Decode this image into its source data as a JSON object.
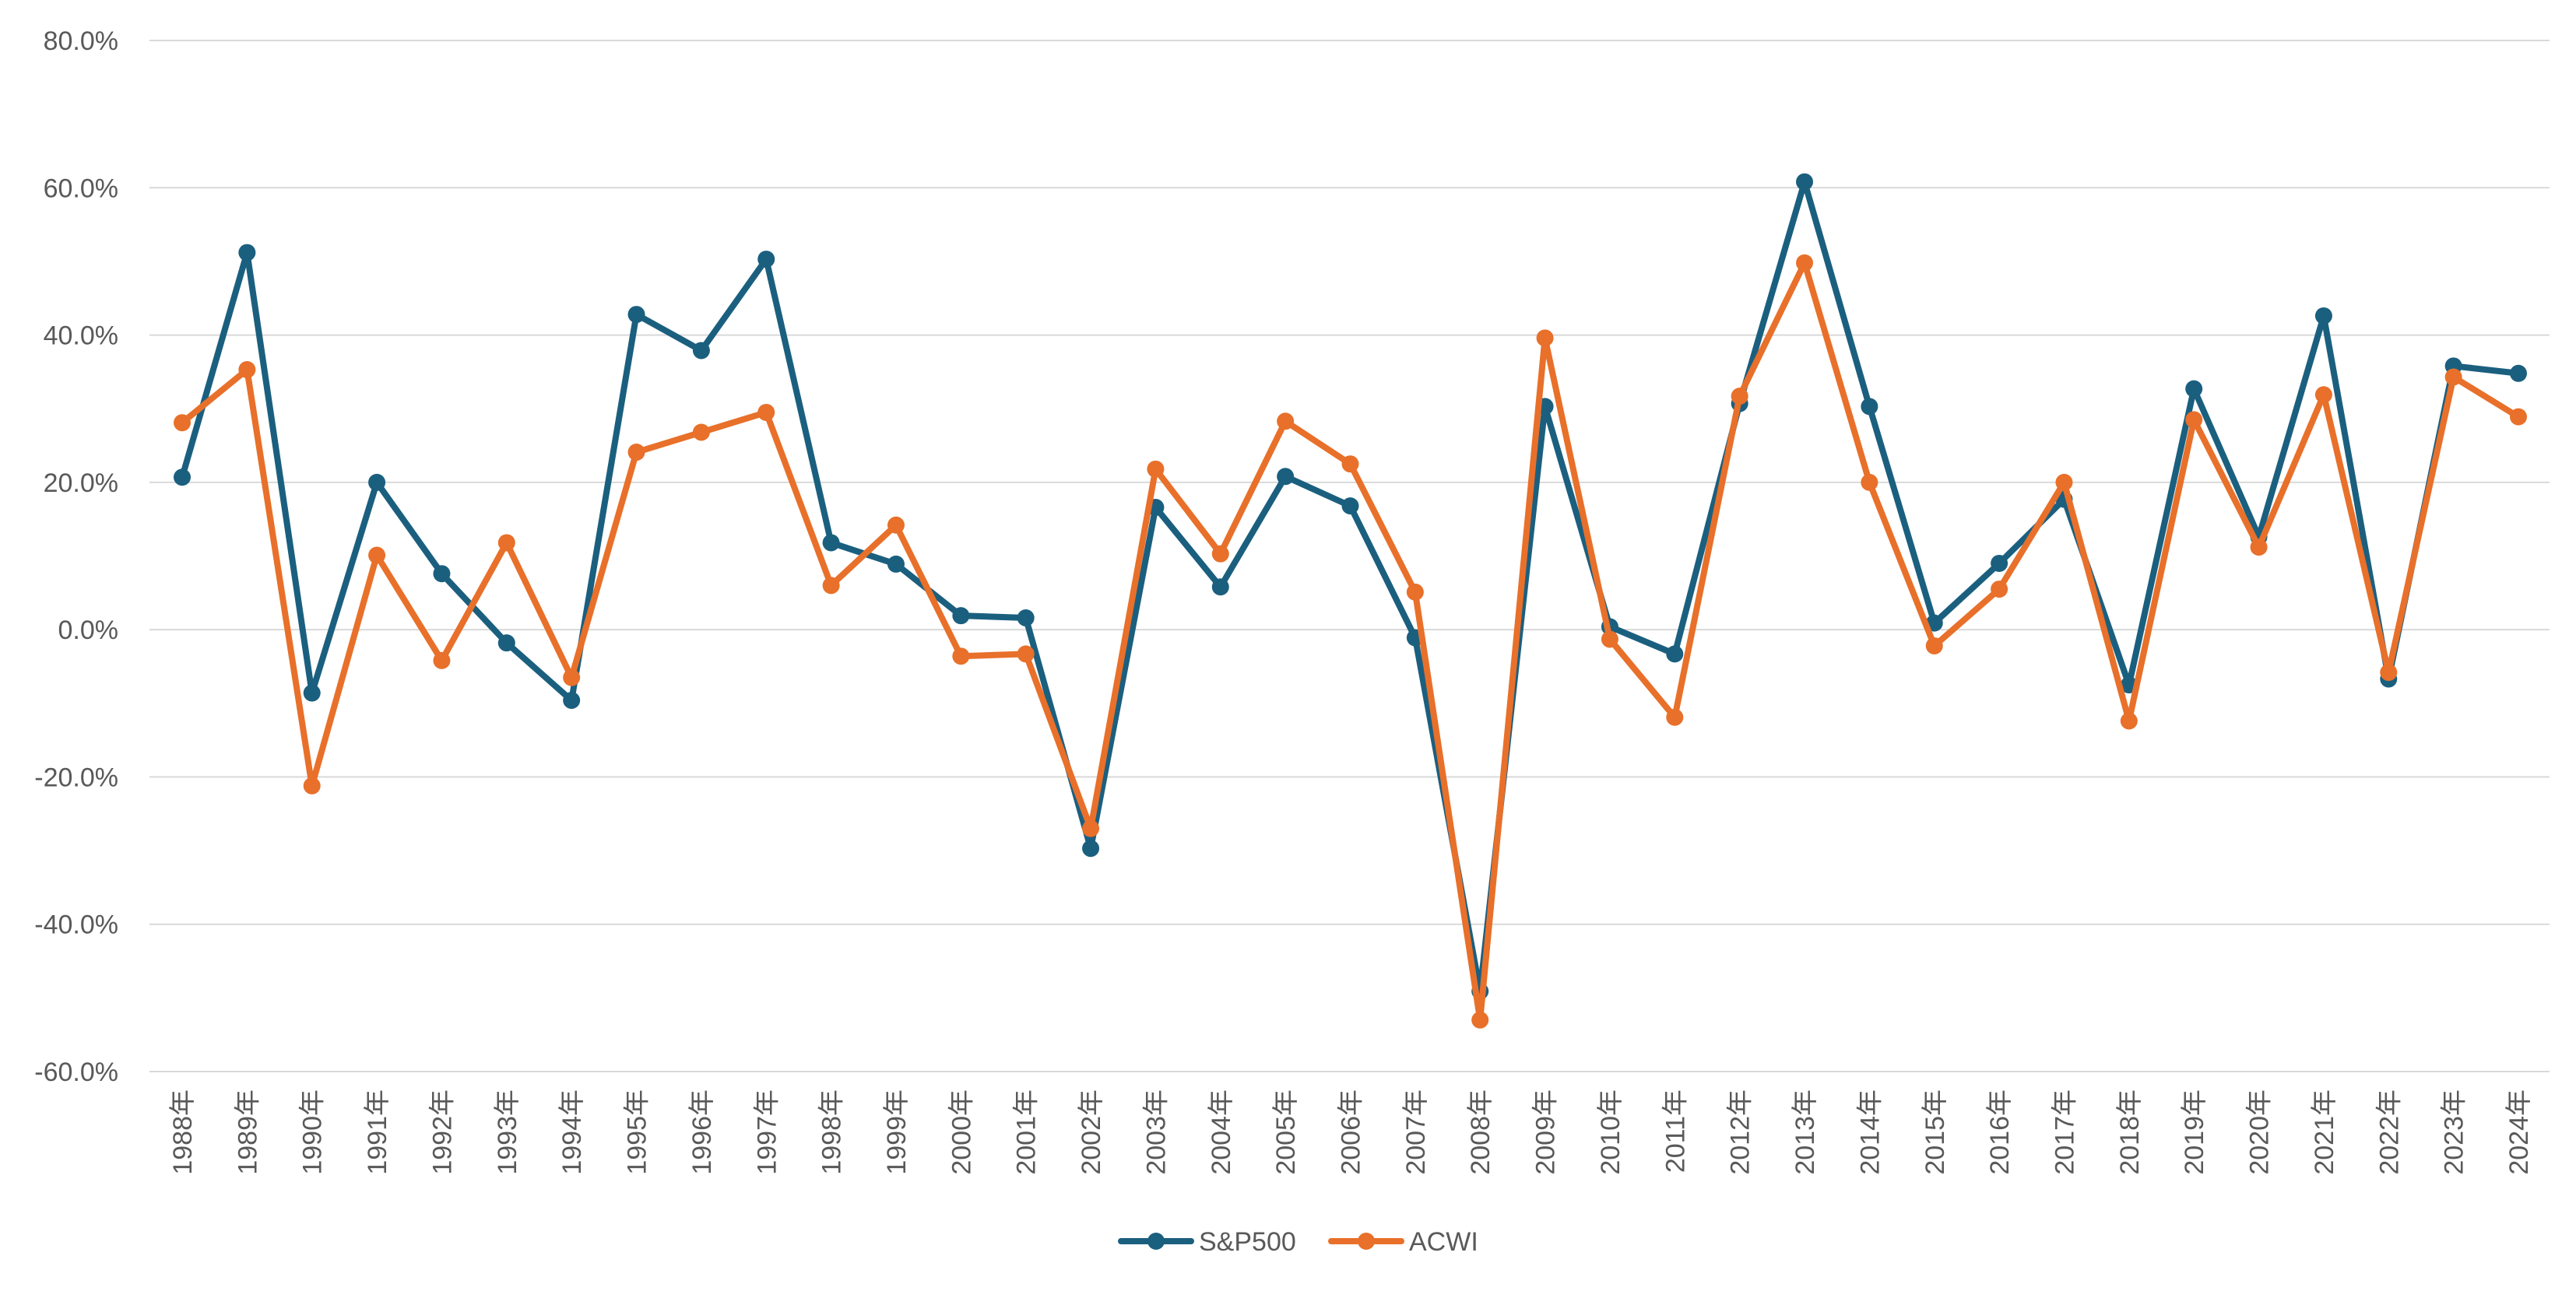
{
  "chart_data": {
    "type": "line",
    "title": "",
    "xlabel": "",
    "ylabel": "",
    "ylim": [
      -60,
      80
    ],
    "y_ticks": [
      80,
      60,
      40,
      20,
      0,
      -20,
      -40,
      -60
    ],
    "y_tick_labels": [
      "80.0%",
      "60.0%",
      "40.0%",
      "20.0%",
      "0.0%",
      "-20.0%",
      "-40.0%",
      "-60.0%"
    ],
    "grid": true,
    "legend_position": "bottom",
    "categories": [
      "1988年",
      "1989年",
      "1990年",
      "1991年",
      "1992年",
      "1993年",
      "1994年",
      "1995年",
      "1996年",
      "1997年",
      "1998年",
      "1999年",
      "2000年",
      "2001年",
      "2002年",
      "2003年",
      "2004年",
      "2005年",
      "2006年",
      "2007年",
      "2008年",
      "2009年",
      "2010年",
      "2011年",
      "2012年",
      "2013年",
      "2014年",
      "2015年",
      "2016年",
      "2017年",
      "2018年",
      "2019年",
      "2020年",
      "2021年",
      "2022年",
      "2023年",
      "2024年"
    ],
    "series": [
      {
        "name": "S&P500",
        "color": "#1b5f7f",
        "values": [
          20.7,
          51.2,
          -8.6,
          20.0,
          7.6,
          -1.8,
          -9.6,
          42.8,
          37.9,
          50.3,
          11.8,
          8.9,
          1.9,
          1.6,
          -29.7,
          16.6,
          5.8,
          20.8,
          16.8,
          -1.1,
          -49.1,
          30.3,
          0.4,
          -3.3,
          30.7,
          60.8,
          30.3,
          0.9,
          9.0,
          17.7,
          -7.5,
          32.7,
          12.6,
          42.6,
          -6.7,
          35.8,
          34.8
        ]
      },
      {
        "name": "ACWI",
        "color": "#e8702a",
        "values": [
          28.1,
          35.3,
          -21.2,
          10.1,
          -4.2,
          11.8,
          -6.5,
          24.1,
          26.8,
          29.5,
          6.0,
          14.2,
          -3.6,
          -3.3,
          -27.0,
          21.8,
          10.3,
          28.3,
          22.5,
          5.1,
          -53.0,
          39.6,
          -1.3,
          -11.9,
          31.7,
          49.8,
          20.0,
          -2.2,
          5.5,
          20.0,
          -12.4,
          28.5,
          11.2,
          31.9,
          -5.8,
          34.3,
          28.9
        ]
      }
    ]
  }
}
